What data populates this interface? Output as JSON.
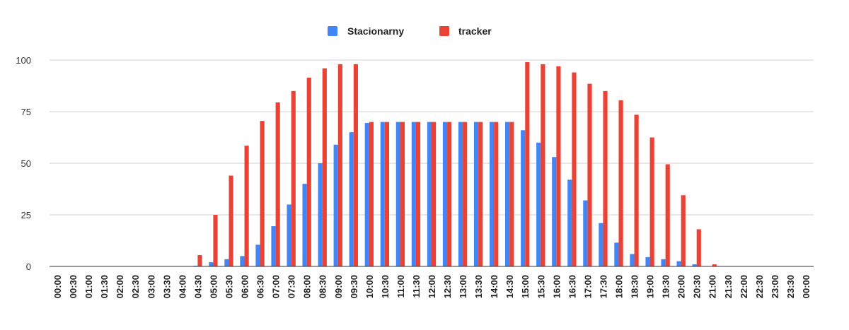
{
  "chart_data": {
    "type": "bar",
    "title": "",
    "xlabel": "",
    "ylabel": "",
    "ylim": [
      0,
      100
    ],
    "yticks": [
      0,
      25,
      50,
      75,
      100
    ],
    "grid": true,
    "legend": "top-center",
    "categories": [
      "00:00",
      "00:30",
      "01:00",
      "01:30",
      "02:00",
      "02:30",
      "03:00",
      "03:30",
      "04:00",
      "04:30",
      "05:00",
      "05:30",
      "06:00",
      "06:30",
      "07:00",
      "07:30",
      "08:00",
      "08:30",
      "09:00",
      "09:30",
      "10:00",
      "10:30",
      "11:00",
      "11:30",
      "12:00",
      "12:30",
      "13:00",
      "13:30",
      "14:00",
      "14:30",
      "15:00",
      "15:30",
      "16:00",
      "16:30",
      "17:00",
      "17:30",
      "18:00",
      "18:30",
      "19:00",
      "19:30",
      "20:00",
      "20:30",
      "21:00",
      "21:30",
      "22:00",
      "22:30",
      "23:00",
      "23:30",
      "00:00"
    ],
    "series": [
      {
        "name": "Stacionarny",
        "color": "#4285f4",
        "values": [
          0,
          0,
          0,
          0,
          0,
          0,
          0,
          0,
          0,
          0.3,
          2,
          3.5,
          5,
          10.5,
          19.5,
          30,
          40,
          50,
          59,
          65,
          69.5,
          70,
          70,
          70,
          70,
          70,
          70,
          70,
          70,
          70,
          66,
          60,
          53,
          42,
          32,
          21,
          11.5,
          6,
          4.5,
          3.5,
          2.5,
          1,
          0,
          0,
          0,
          0,
          0,
          0,
          0
        ]
      },
      {
        "name": "tracker",
        "color": "#ea4335",
        "values": [
          0,
          0,
          0,
          0,
          0,
          0,
          0,
          0,
          0,
          5.5,
          25,
          44,
          58.5,
          70.5,
          79.5,
          85,
          91.5,
          96,
          98,
          98,
          70,
          70,
          70,
          70,
          70,
          70,
          70,
          70,
          70,
          70,
          99,
          98,
          97,
          94,
          88.5,
          85,
          80.5,
          73.5,
          62.5,
          49.5,
          34.5,
          18,
          1,
          0,
          0,
          0,
          0,
          0,
          0
        ]
      }
    ]
  }
}
